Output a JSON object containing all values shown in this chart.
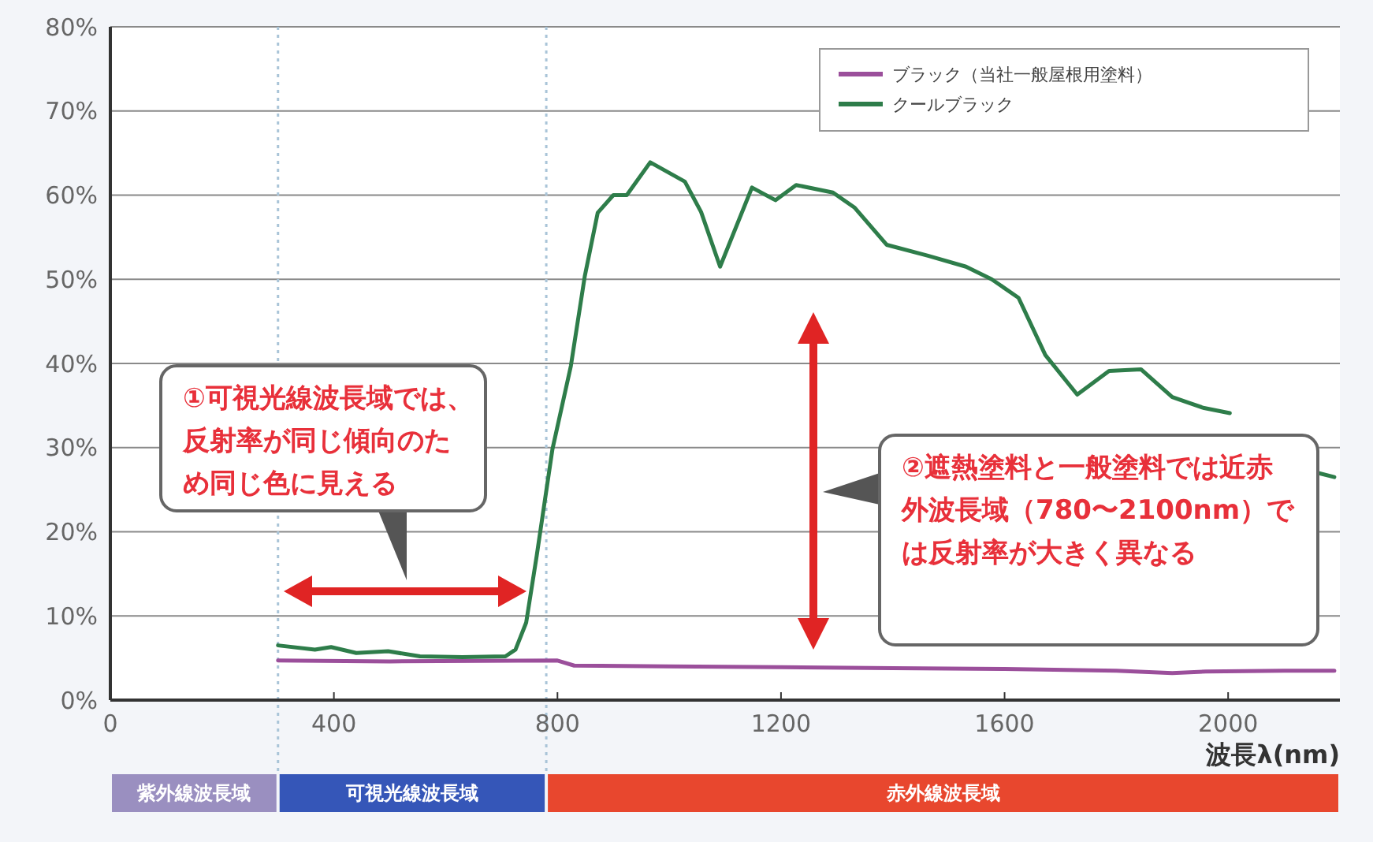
{
  "chart_data": {
    "type": "line",
    "xlabel": "波長λ(nm)",
    "xlim": [
      0,
      2200
    ],
    "xticks": [
      0,
      400,
      800,
      1200,
      1600,
      2000
    ],
    "ylim": [
      0,
      80
    ],
    "yticks": [
      {
        "value": 0,
        "label": "0%"
      },
      {
        "value": 10,
        "label": "10%"
      },
      {
        "value": 20,
        "label": "20%"
      },
      {
        "value": 30,
        "label": "30%"
      },
      {
        "value": 40,
        "label": "40%"
      },
      {
        "value": 50,
        "label": "50%"
      },
      {
        "value": 60,
        "label": "60%"
      },
      {
        "value": 70,
        "label": "70%"
      },
      {
        "value": 80,
        "label": "80%"
      }
    ],
    "grid": "y",
    "legend": "top right",
    "line_style": "solid",
    "marker": "none",
    "series": [
      {
        "name": "ブラック（当社一般屋根用塗料）",
        "color": "#9b4f9b",
        "x": [
          300,
          500,
          800,
          830,
          1000,
          1200,
          1400,
          1600,
          1800,
          1900,
          1960,
          2100,
          2190
        ],
        "values": [
          4.7,
          4.6,
          4.7,
          4.1,
          4.0,
          3.9,
          3.8,
          3.7,
          3.5,
          3.2,
          3.4,
          3.5,
          3.5
        ]
      },
      {
        "name": "クールブラック",
        "color": "#2e7d4a",
        "x": [
          300,
          366,
          395,
          440,
          497,
          554,
          630,
          707,
          725,
          744,
          763,
          791,
          824,
          849,
          872,
          900,
          924,
          966,
          1028,
          1057,
          1091,
          1148,
          1190,
          1227,
          1293,
          1332,
          1389,
          1463,
          1531,
          1577,
          1625,
          1673,
          1730,
          1787,
          1844,
          1900,
          1957,
          2003,
          2030,
          2160,
          2190
        ],
        "values": [
          6.5,
          6.0,
          6.3,
          5.6,
          5.8,
          5.2,
          5.1,
          5.2,
          6.0,
          9.2,
          17.2,
          29.8,
          39.7,
          50.4,
          57.9,
          60.0,
          60.0,
          63.9,
          61.6,
          58.0,
          51.5,
          60.9,
          59.4,
          61.2,
          60.3,
          58.5,
          54.1,
          52.8,
          51.5,
          50.0,
          47.8,
          41.0,
          36.3,
          39.1,
          39.3,
          36.0,
          34.7,
          34.1,
          null,
          27.0,
          26.5
        ]
      }
    ],
    "ref_lines": [
      {
        "axis": "x",
        "value": 300,
        "color": "#a9c4d8",
        "line_style": "dotted"
      },
      {
        "axis": "x",
        "value": 780,
        "color": "#a9c4d8",
        "line_style": "dotted"
      }
    ],
    "annotations": [
      "①可視光線波長域では、反射率が同じ傾向のため同じ色に見える",
      "②遮熱塗料と一般塗料では近赤外波長域（780〜2100nm）では反射率が大きく異なる",
      "紫外線波長域",
      "可視光線波長域",
      "赤外線波長域"
    ]
  }
}
